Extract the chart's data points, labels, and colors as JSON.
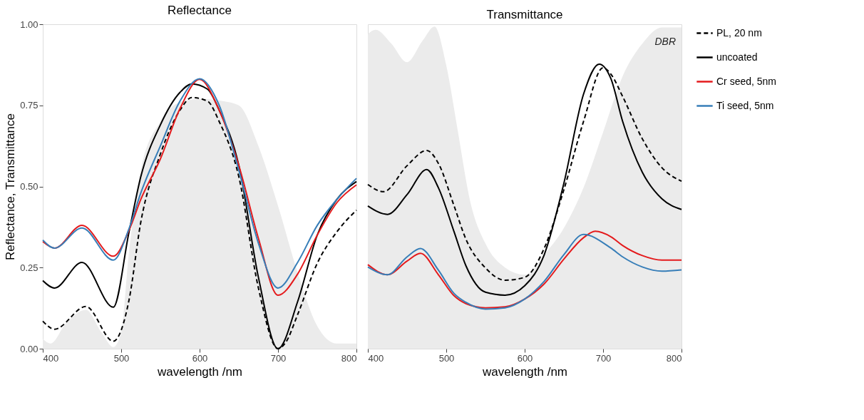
{
  "chart_data": [
    {
      "type": "line",
      "title": "Reflectance",
      "xlabel": "wavelength /nm",
      "ylabel": "Reflectance, Transmittance",
      "xlim": [
        400,
        800
      ],
      "xticks": [
        400,
        500,
        600,
        700,
        800
      ],
      "ylim": [
        0,
        1
      ],
      "yticks": [
        {
          "value": 0,
          "label": "0.00"
        },
        {
          "value": 0.25,
          "label": "0.25"
        },
        {
          "value": 0.5,
          "label": "0.50"
        },
        {
          "value": 0.75,
          "label": "0.75"
        },
        {
          "value": 1,
          "label": "1.00"
        }
      ],
      "grid": false,
      "legend": "right",
      "series": [
        {
          "type": "area",
          "color": "#ebebeb",
          "x": [
            400,
            410,
            430,
            455,
            475,
            490,
            500,
            510,
            525,
            550,
            575,
            600,
            625,
            650,
            675,
            700,
            725,
            750,
            775,
            800
          ],
          "values": [
            0.03,
            0.016,
            0.08,
            0.12,
            0.05,
            0.005,
            0.05,
            0.3,
            0.55,
            0.7,
            0.76,
            0.77,
            0.765,
            0.75,
            0.625,
            0.44,
            0.235,
            0.07,
            0.016,
            0.016
          ]
        },
        {
          "name": "PL, 20 nm",
          "color": "#000000",
          "line_style": "dashed",
          "x": [
            400,
            415,
            455,
            490,
            510,
            525,
            550,
            575,
            590,
            610,
            625,
            650,
            675,
            700,
            710,
            725,
            750,
            775,
            800
          ],
          "values": [
            0.085,
            0.06,
            0.13,
            0.023,
            0.15,
            0.39,
            0.6,
            0.735,
            0.774,
            0.763,
            0.7,
            0.53,
            0.187,
            0.0,
            0.02,
            0.105,
            0.263,
            0.36,
            0.427
          ]
        },
        {
          "name": "uncoated",
          "color": "#000000",
          "line_style": "solid",
          "x": [
            400,
            415,
            450,
            490,
            510,
            525,
            550,
            575,
            590,
            610,
            625,
            650,
            675,
            700,
            725,
            750,
            775,
            800
          ],
          "values": [
            0.21,
            0.187,
            0.266,
            0.128,
            0.36,
            0.53,
            0.69,
            0.79,
            0.816,
            0.8,
            0.735,
            0.565,
            0.22,
            0.0,
            0.145,
            0.35,
            0.46,
            0.515
          ]
        },
        {
          "name": "Cr seed, 5nm",
          "color": "#e41a1c",
          "line_style": "solid",
          "x": [
            400,
            415,
            450,
            490,
            510,
            525,
            550,
            575,
            600,
            625,
            650,
            675,
            700,
            725,
            750,
            775,
            800
          ],
          "values": [
            0.33,
            0.31,
            0.38,
            0.285,
            0.365,
            0.46,
            0.585,
            0.74,
            0.83,
            0.735,
            0.565,
            0.34,
            0.165,
            0.23,
            0.35,
            0.45,
            0.505
          ]
        },
        {
          "name": "Ti seed, 5nm",
          "color": "#377eb8",
          "line_style": "solid",
          "x": [
            400,
            415,
            450,
            490,
            510,
            525,
            550,
            575,
            600,
            625,
            650,
            675,
            700,
            725,
            750,
            775,
            800
          ],
          "values": [
            0.335,
            0.31,
            0.372,
            0.273,
            0.37,
            0.48,
            0.625,
            0.763,
            0.832,
            0.75,
            0.55,
            0.325,
            0.187,
            0.266,
            0.38,
            0.46,
            0.525
          ]
        }
      ]
    },
    {
      "type": "line",
      "title": "Transmittance",
      "xlabel": "wavelength /nm",
      "xlim": [
        400,
        800
      ],
      "xticks": [
        400,
        500,
        600,
        700,
        800
      ],
      "ylim": [
        0,
        1
      ],
      "tick_labels": "x",
      "grid": false,
      "legend": "right",
      "annotations": [
        "DBR"
      ],
      "series": [
        {
          "type": "area",
          "color": "#ebebeb",
          "x": [
            400,
            410,
            430,
            450,
            470,
            485,
            500,
            515,
            530,
            550,
            575,
            600,
            625,
            650,
            675,
            700,
            725,
            750,
            775,
            800
          ],
          "values": [
            0.97,
            0.983,
            0.94,
            0.883,
            0.95,
            0.993,
            0.873,
            0.667,
            0.46,
            0.324,
            0.25,
            0.228,
            0.29,
            0.372,
            0.496,
            0.667,
            0.84,
            0.94,
            0.99,
            0.99
          ]
        },
        {
          "name": "PL, 20 nm",
          "color": "#000000",
          "line_style": "dashed",
          "x": [
            400,
            420,
            450,
            475,
            490,
            510,
            525,
            550,
            575,
            600,
            625,
            650,
            675,
            700,
            710,
            725,
            750,
            775,
            800
          ],
          "values": [
            0.506,
            0.484,
            0.564,
            0.611,
            0.571,
            0.44,
            0.338,
            0.249,
            0.211,
            0.22,
            0.31,
            0.49,
            0.7,
            0.866,
            0.846,
            0.777,
            0.647,
            0.558,
            0.516
          ]
        },
        {
          "name": "uncoated",
          "color": "#000000",
          "line_style": "solid",
          "x": [
            400,
            425,
            450,
            475,
            490,
            510,
            525,
            550,
            575,
            600,
            625,
            650,
            675,
            695,
            710,
            725,
            750,
            775,
            800
          ],
          "values": [
            0.44,
            0.414,
            0.475,
            0.552,
            0.496,
            0.36,
            0.256,
            0.174,
            0.165,
            0.194,
            0.29,
            0.51,
            0.784,
            0.877,
            0.832,
            0.7,
            0.544,
            0.462,
            0.429
          ]
        },
        {
          "name": "Cr seed, 5nm",
          "color": "#e41a1c",
          "line_style": "solid",
          "x": [
            400,
            425,
            450,
            467,
            490,
            510,
            525,
            550,
            575,
            600,
            625,
            650,
            675,
            690,
            710,
            725,
            750,
            775,
            800
          ],
          "values": [
            0.259,
            0.228,
            0.27,
            0.294,
            0.228,
            0.163,
            0.139,
            0.126,
            0.129,
            0.153,
            0.2,
            0.276,
            0.342,
            0.362,
            0.345,
            0.318,
            0.287,
            0.273,
            0.273
          ]
        },
        {
          "name": "Ti seed, 5nm",
          "color": "#377eb8",
          "line_style": "solid",
          "x": [
            400,
            425,
            450,
            467,
            490,
            510,
            525,
            550,
            575,
            600,
            625,
            650,
            675,
            710,
            725,
            750,
            775,
            800
          ],
          "values": [
            0.252,
            0.228,
            0.283,
            0.309,
            0.242,
            0.17,
            0.143,
            0.122,
            0.126,
            0.153,
            0.208,
            0.29,
            0.352,
            0.31,
            0.283,
            0.252,
            0.239,
            0.243
          ]
        }
      ]
    }
  ]
}
